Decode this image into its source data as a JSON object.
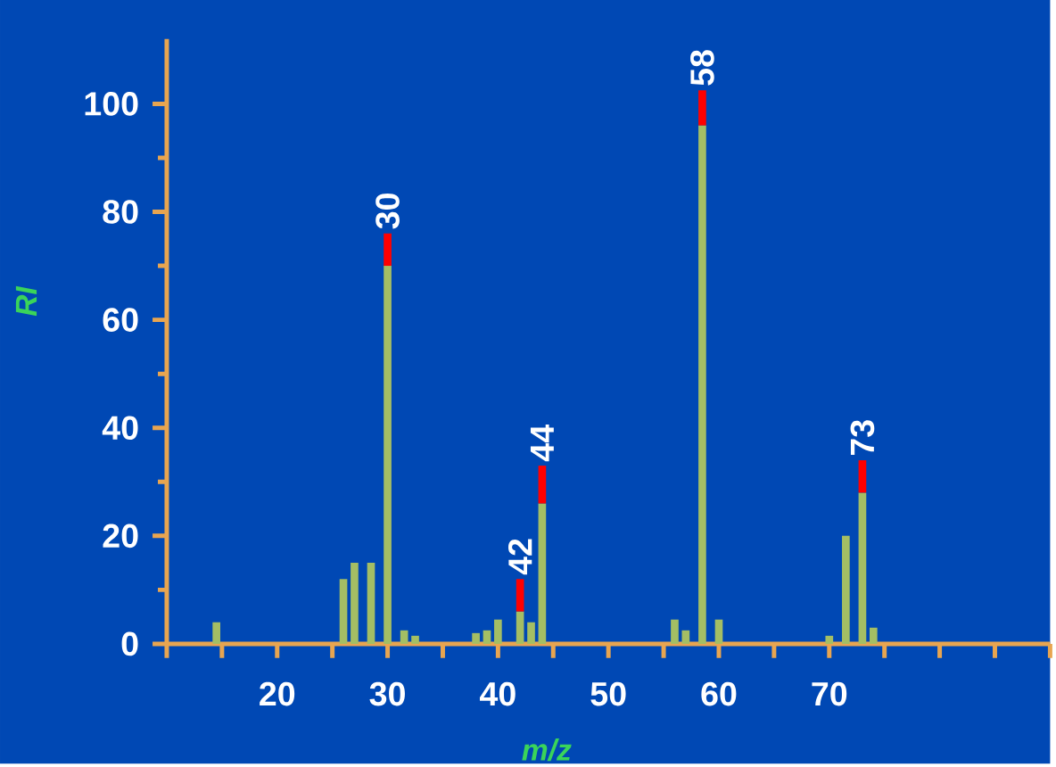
{
  "chart_data": {
    "type": "bar",
    "stacked": true,
    "xlabel": "m/z",
    "ylabel": "RI",
    "x": [
      14.5,
      26,
      27,
      28.5,
      30,
      31.5,
      32.5,
      38,
      39,
      40,
      42,
      43,
      44,
      56,
      57,
      58.5,
      60,
      70,
      71.5,
      73,
      74
    ],
    "series": [
      {
        "color": "#a4be64",
        "values": [
          4,
          12,
          15,
          15,
          70,
          2.5,
          1.5,
          2,
          2.5,
          4.5,
          6,
          4,
          26,
          4.5,
          2.5,
          96,
          4.5,
          1.5,
          20,
          28,
          3
        ]
      },
      {
        "color": "#ff0000",
        "values": [
          null,
          null,
          null,
          null,
          6,
          null,
          null,
          null,
          null,
          null,
          6,
          null,
          7,
          null,
          null,
          6.5,
          null,
          null,
          null,
          6,
          null
        ]
      }
    ],
    "annotations": [
      {
        "text": "30",
        "x": 30,
        "y": 76
      },
      {
        "text": "42",
        "x": 42,
        "y": 12
      },
      {
        "text": "44",
        "x": 44,
        "y": 33
      },
      {
        "text": "58",
        "x": 58.5,
        "y": 102.5
      },
      {
        "text": "73",
        "x": 73,
        "y": 34
      }
    ],
    "xlim": [
      10,
      90
    ],
    "xticks": [
      {
        "value": 10,
        "label": null
      },
      {
        "value": 15,
        "label": null
      },
      20,
      {
        "value": 25,
        "label": null
      },
      30,
      {
        "value": 35,
        "label": null
      },
      40,
      {
        "value": 45,
        "label": null
      },
      50,
      {
        "value": 55,
        "label": null
      },
      60,
      {
        "value": 65,
        "label": null
      },
      70,
      {
        "value": 75,
        "label": null
      },
      {
        "value": 80,
        "label": null
      },
      {
        "value": 85,
        "label": null
      },
      {
        "value": 90,
        "label": null
      }
    ],
    "ylim": [
      0,
      112
    ],
    "yticks": [
      0,
      20,
      40,
      60,
      80,
      100
    ]
  }
}
